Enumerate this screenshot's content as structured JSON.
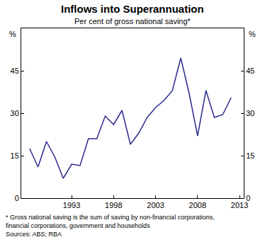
{
  "chart_data": {
    "type": "line",
    "title": "Inflows into Superannuation",
    "subtitle": "Per cent of gross national saving*",
    "ylabel": "%",
    "y2label": "%",
    "footnote": [
      "* Gross national saving is the sum of saving by non-financial corporations,",
      "financial corporations, government and households"
    ],
    "source": "Sources: ABS; RBA",
    "x": [
      1988,
      1989,
      1990,
      1991,
      1992,
      1993,
      1994,
      1995,
      1996,
      1997,
      1998,
      1999,
      2000,
      2001,
      2002,
      2003,
      2004,
      2005,
      2006,
      2007,
      2008,
      2009,
      2010,
      2011,
      2012
    ],
    "values": [
      17.5,
      11,
      20,
      14.5,
      7,
      12,
      11.5,
      21,
      21,
      29,
      26,
      31,
      19,
      23,
      28.5,
      32,
      34.5,
      38,
      49.5,
      37,
      22,
      38,
      28.5,
      29.5,
      35.5
    ],
    "color": "#2b2b8f",
    "xlim": [
      1987,
      2013.5
    ],
    "xticks": [
      1993,
      1998,
      2003,
      2008,
      2013
    ],
    "ylim": [
      0,
      60
    ],
    "yticks": [
      0,
      15,
      30,
      45
    ],
    "y2lim": [
      0,
      60
    ],
    "y2ticks": [
      0,
      15,
      30,
      45
    ],
    "grid": false
  }
}
